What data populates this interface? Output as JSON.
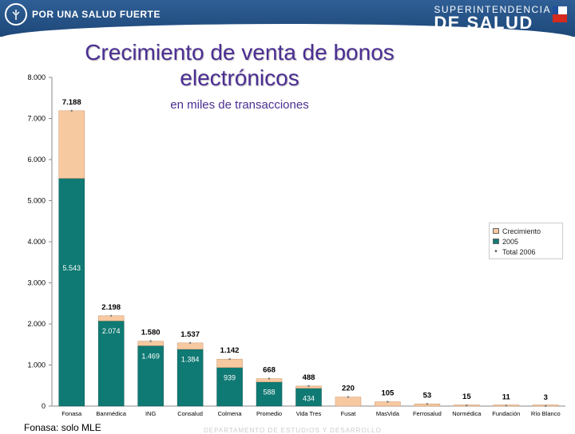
{
  "header": {
    "left_brand": "POR UNA SALUD FUERTE",
    "right_brand_sub": "SUPERINTENDENCIA",
    "right_brand_main": "DE SALUD"
  },
  "footnote": "Fonasa: solo MLE",
  "footer_dept": "DEPARTAMENTO DE ESTUDIOS Y DESARROLLO",
  "colors": {
    "header": "#1d4778",
    "growth": "#f7c9a1",
    "base_2005": "#0f7a73",
    "title": "#4b2e92"
  },
  "chart_data": {
    "type": "bar",
    "title": "Crecimiento de venta de bonos electrónicos",
    "subtitle": "en miles de transacciones",
    "categories": [
      "Fonasa",
      "Banmédica",
      "ING",
      "Consalud",
      "Colmena",
      "Promedio",
      "Vida Tres",
      "Fusat",
      "MasVida",
      "Ferrosalud",
      "Normédica",
      "Fundación",
      "Río Blanco"
    ],
    "series": [
      {
        "name": "2005",
        "values": [
          5543,
          2074,
          1469,
          1384,
          939,
          588,
          434,
          0,
          0,
          0,
          0,
          0,
          0
        ],
        "labels": [
          "5.543",
          "2.074",
          "1.469",
          "1.384",
          "939",
          "588",
          "434",
          "",
          "",
          "",
          "",
          "",
          ""
        ]
      },
      {
        "name": "Crecimiento",
        "values": [
          1645,
          124,
          111,
          153,
          203,
          80,
          54,
          220,
          105,
          53,
          15,
          11,
          3
        ]
      },
      {
        "name": "Total 2006",
        "values": [
          7188,
          2198,
          1580,
          1537,
          1142,
          668,
          488,
          220,
          105,
          53,
          15,
          11,
          3
        ],
        "labels": [
          "7.188",
          "2.198",
          "1.580",
          "1.537",
          "1.142",
          "668",
          "488",
          "220",
          "105",
          "53",
          "15",
          "11",
          "3"
        ]
      }
    ],
    "legend": [
      "Crecimiento",
      "2005",
      "Total 2006"
    ],
    "legend_position": "right",
    "ylim": [
      0,
      8000
    ],
    "yticks": [
      0,
      1000,
      2000,
      3000,
      4000,
      5000,
      6000,
      7000,
      8000
    ],
    "ytick_labels": [
      "0",
      "1.000",
      "2.000",
      "3.000",
      "4.000",
      "5.000",
      "6.000",
      "7.000",
      "8.000"
    ]
  }
}
